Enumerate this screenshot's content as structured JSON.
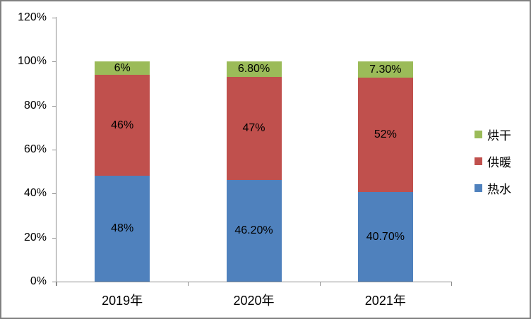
{
  "chart_data": {
    "type": "bar",
    "stacked": true,
    "title": "",
    "xlabel": "",
    "ylabel": "",
    "grid": false,
    "categories": [
      "2019年",
      "2020年",
      "2021年"
    ],
    "series": [
      {
        "name": "热水",
        "color": "#4F81BD",
        "values": [
          48,
          46.2,
          40.7
        ],
        "labels": [
          "48%",
          "46.20%",
          "40.70%"
        ]
      },
      {
        "name": "供暖",
        "color": "#C0504D",
        "values": [
          46,
          47,
          52
        ],
        "labels": [
          "46%",
          "47%",
          "52%"
        ]
      },
      {
        "name": "烘干",
        "color": "#9BBB59",
        "values": [
          6,
          6.8,
          7.3
        ],
        "labels": [
          "6%",
          "6.80%",
          "7.30%"
        ]
      }
    ],
    "ylim": [
      0,
      120
    ],
    "yticks": [
      {
        "value": 0,
        "label": "0%"
      },
      {
        "value": 20,
        "label": "20%"
      },
      {
        "value": 40,
        "label": "40%"
      },
      {
        "value": 60,
        "label": "60%"
      },
      {
        "value": 80,
        "label": "80%"
      },
      {
        "value": 100,
        "label": "100%"
      },
      {
        "value": 120,
        "label": "120%"
      }
    ],
    "legend": {
      "position": "right",
      "order": [
        "烘干",
        "供暖",
        "热水"
      ]
    }
  },
  "colors": {
    "axis": "#8C8C8C",
    "border": "#808080",
    "text": "#000000",
    "background": "#FFFFFF"
  }
}
